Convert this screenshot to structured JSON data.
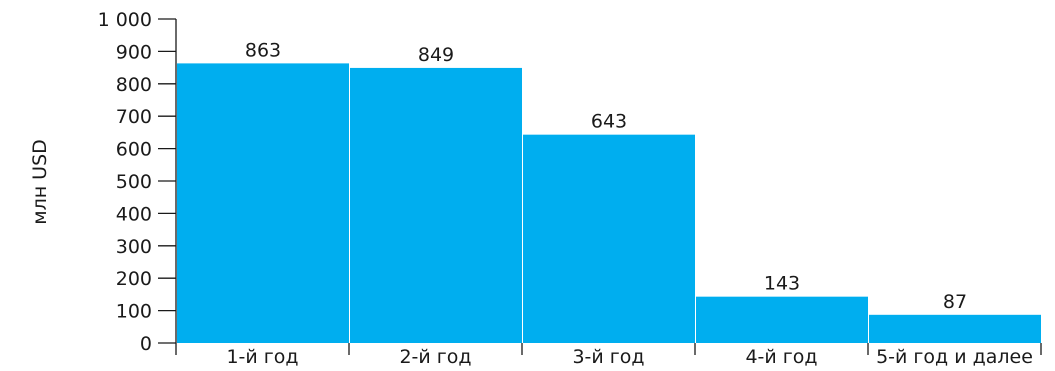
{
  "chart_data": {
    "type": "bar",
    "title": "",
    "xlabel": "",
    "ylabel": "млн USD",
    "categories": [
      "1-й год",
      "2-й год",
      "3-й год",
      "4-й год",
      "5-й год и далее"
    ],
    "values": [
      863,
      849,
      643,
      143,
      87
    ],
    "data_labels": [
      "863",
      "849",
      "643",
      "143",
      "87"
    ],
    "ylim": [
      0,
      1000
    ],
    "yticks": [
      0,
      100,
      200,
      300,
      400,
      500,
      600,
      700,
      800,
      900,
      1000
    ],
    "ytick_labels": [
      "0",
      "100",
      "200",
      "300",
      "400",
      "500",
      "600",
      "700",
      "800",
      "900",
      "1 000"
    ],
    "grid": false,
    "legend": "none",
    "bar_color": "#00aeef"
  }
}
